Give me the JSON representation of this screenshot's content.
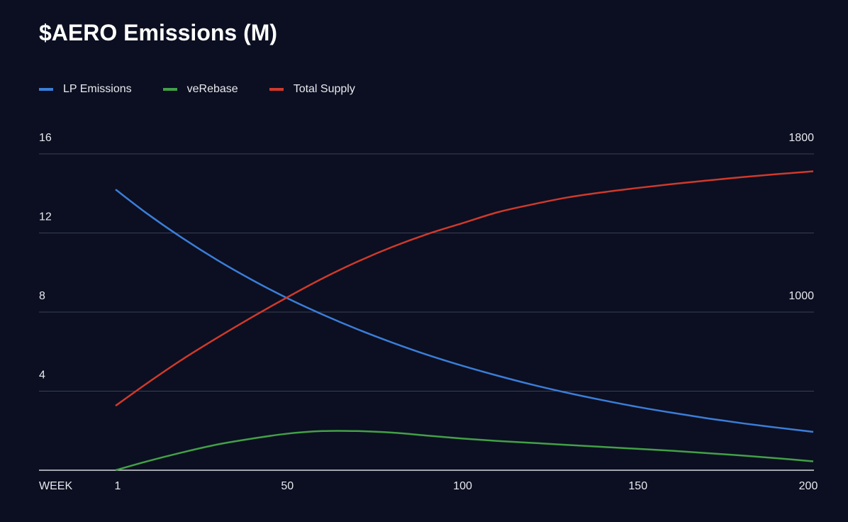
{
  "chart_data": {
    "type": "line",
    "title": "$AERO Emissions (M)",
    "xlabel": "WEEK",
    "x_ticks": [
      1,
      50,
      100,
      150,
      200
    ],
    "xlim": [
      1,
      200
    ],
    "y_left": {
      "ticks": [
        4,
        8,
        12,
        16
      ],
      "lim": [
        0,
        16
      ]
    },
    "y_right": {
      "ticks": [
        1000,
        1800
      ],
      "lim": [
        200,
        1800
      ]
    },
    "grid": true,
    "legend_placement": "top-left",
    "x": [
      1,
      10,
      20,
      30,
      40,
      50,
      60,
      70,
      80,
      90,
      100,
      110,
      120,
      130,
      140,
      150,
      160,
      170,
      180,
      190,
      200
    ],
    "series": [
      {
        "name": "LP Emissions",
        "axis": "left",
        "color": "#3b7dd8",
        "values": [
          14.2,
          12.98,
          11.75,
          10.63,
          9.62,
          8.7,
          7.88,
          7.13,
          6.45,
          5.83,
          5.28,
          4.78,
          4.32,
          3.91,
          3.54,
          3.2,
          2.9,
          2.62,
          2.37,
          2.15,
          1.94
        ]
      },
      {
        "name": "veRebase",
        "axis": "left",
        "color": "#43a047",
        "values": [
          0,
          0.45,
          0.9,
          1.3,
          1.6,
          1.85,
          1.98,
          1.98,
          1.9,
          1.75,
          1.6,
          1.48,
          1.38,
          1.28,
          1.18,
          1.08,
          0.98,
          0.86,
          0.74,
          0.6,
          0.45
        ]
      },
      {
        "name": "Total Supply",
        "axis": "right",
        "color": "#d0392b",
        "values": [
          526,
          640,
          760,
          870,
          975,
          1075,
          1170,
          1255,
          1330,
          1395,
          1450,
          1505,
          1545,
          1580,
          1606,
          1628,
          1648,
          1666,
          1683,
          1698,
          1712
        ]
      }
    ]
  }
}
